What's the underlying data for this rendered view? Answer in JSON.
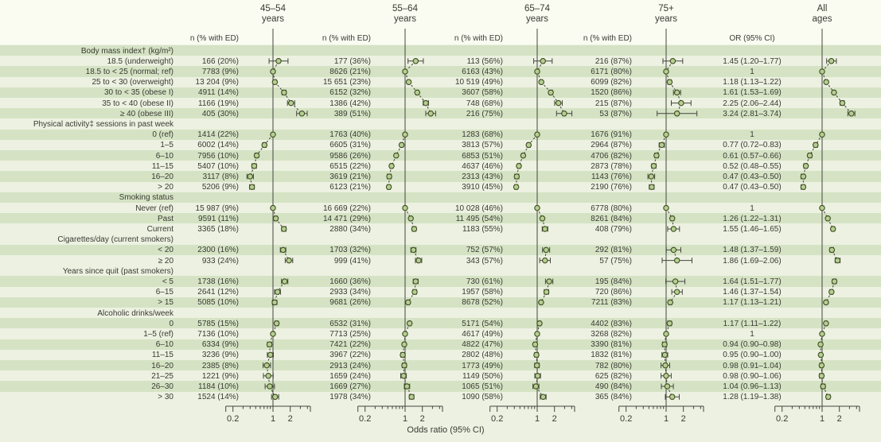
{
  "header": {
    "columns": [
      {
        "range": "45–54",
        "unit": "years",
        "n_header": "n (% with ED)"
      },
      {
        "range": "55–64",
        "unit": "years",
        "n_header": "n (% with ED)"
      },
      {
        "range": "65–74",
        "unit": "years",
        "n_header": "n (% with ED)"
      },
      {
        "range": "75+",
        "unit": "years",
        "n_header": "n (% with ED)"
      },
      {
        "range": "All",
        "unit": "ages",
        "n_header": "OR (95% CI)"
      }
    ]
  },
  "axis": {
    "xlabel": "Odds ratio (95% CI)",
    "scale": "log",
    "range": [
      0.15,
      4.5
    ],
    "major_ticks": [
      0.2,
      1,
      2
    ],
    "tick_labels": [
      "0.2",
      "1",
      "2"
    ],
    "minor_ticks": [
      0.3,
      0.4,
      0.5,
      0.6,
      0.7,
      0.8,
      0.9,
      3,
      4
    ]
  },
  "chart_data": {
    "type": "forest",
    "panel_order": [
      "45–54 years",
      "55–64 years",
      "65–74 years",
      "75+ years",
      "All ages"
    ],
    "striped_rows": [
      0,
      2,
      4,
      6,
      8,
      10,
      12,
      14,
      16,
      19,
      22,
      24,
      26,
      28,
      30,
      32
    ],
    "groups": [
      {
        "header": "Body mass index† (kg/m²)",
        "rows": [
          {
            "label": "18.5 (underweight)",
            "n": [
              "166 (20%)",
              "177 (36%)",
              "113 (56%)",
              "216 (87%)"
            ],
            "or": "1.45 (1.20–1.77)",
            "est": [
              1.25,
              1.53,
              1.26,
              1.31,
              1.45
            ],
            "ci": [
              1.2,
              1.77
            ]
          },
          {
            "label": "18.5 to < 25 (normal; ref)",
            "n": [
              "7783 (9%)",
              "8626 (21%)",
              "6163 (43%)",
              "6171 (80%)"
            ],
            "or": "1",
            "ref": true
          },
          {
            "label": "25 to < 30 (overweight)",
            "n": [
              "13 204 (9%)",
              "15 651 (23%)",
              "10 519 (49%)",
              "6099 (82%)"
            ],
            "or": "1.18 (1.13–1.22)",
            "est": [
              1.08,
              1.16,
              1.18,
              1.15,
              1.18
            ],
            "ci": [
              1.13,
              1.22
            ]
          },
          {
            "label": "30 to < 35 (obese I)",
            "n": [
              "4911 (14%)",
              "6152 (32%)",
              "3607 (58%)",
              "1520 (86%)"
            ],
            "or": "1.61 (1.53–1.69)",
            "est": [
              1.56,
              1.63,
              1.73,
              1.55,
              1.61
            ],
            "ci": [
              1.53,
              1.69
            ]
          },
          {
            "label": "35 to < 40 (obese II)",
            "n": [
              "1166 (19%)",
              "1386 (42%)",
              "748 (68%)",
              "215 (87%)"
            ],
            "or": "2.25 (2.06–2.44)",
            "est": [
              2.07,
              2.3,
              2.35,
              1.83,
              2.25
            ],
            "ci": [
              2.06,
              2.44
            ]
          },
          {
            "label": "≥ 40 (obese III)",
            "n": [
              "405 (30%)",
              "389 (51%)",
              "216 (75%)",
              "53 (87%)"
            ],
            "or": "3.24 (2.81–3.74)",
            "est": [
              3.2,
              2.8,
              2.96,
              1.55,
              3.24
            ],
            "ci": [
              2.81,
              3.74
            ]
          }
        ]
      },
      {
        "header": "Physical activity‡ sessions in past week",
        "rows": [
          {
            "label": "0 (ref)",
            "n": [
              "1414 (22%)",
              "1763 (40%)",
              "1283 (68%)",
              "1676 (91%)"
            ],
            "or": "1",
            "ref": true
          },
          {
            "label": "1–5",
            "n": [
              "6002 (14%)",
              "6605 (31%)",
              "3813 (57%)",
              "2964 (87%)"
            ],
            "or": "0.77 (0.72–0.83)",
            "est": [
              0.71,
              0.87,
              0.71,
              0.84,
              0.77
            ],
            "ci": [
              0.72,
              0.83
            ]
          },
          {
            "label": "6–10",
            "n": [
              "7956 (10%)",
              "9586 (26%)",
              "6853 (51%)",
              "4706 (82%)"
            ],
            "or": "0.61 (0.57–0.66)",
            "est": [
              0.52,
              0.7,
              0.57,
              0.68,
              0.61
            ],
            "ci": [
              0.57,
              0.66
            ]
          },
          {
            "label": "11–15",
            "n": [
              "5407 (10%)",
              "6515 (22%)",
              "4637 (46%)",
              "2873 (78%)"
            ],
            "or": "0.52 (0.48–0.55)",
            "est": [
              0.47,
              0.58,
              0.48,
              0.61,
              0.52
            ],
            "ci": [
              0.48,
              0.55
            ]
          },
          {
            "label": "16–20",
            "n": [
              "3117 (8%)",
              "3619 (21%)",
              "2313 (43%)",
              "1143 (76%)"
            ],
            "or": "0.47 (0.43–0.50)",
            "est": [
              0.4,
              0.53,
              0.44,
              0.55,
              0.47
            ],
            "ci": [
              0.43,
              0.5
            ]
          },
          {
            "label": "> 20",
            "n": [
              "5206 (9%)",
              "6123 (21%)",
              "3910 (45%)",
              "2190 (76%)"
            ],
            "or": "0.47 (0.43–0.50)",
            "est": [
              0.43,
              0.52,
              0.43,
              0.56,
              0.47
            ],
            "ci": [
              0.43,
              0.5
            ]
          }
        ]
      },
      {
        "header": "Smoking status",
        "rows": [
          {
            "label": "Never (ref)",
            "n": [
              "15 987 (9%)",
              "16 669 (22%)",
              "10 028 (46%)",
              "6778 (80%)"
            ],
            "or": "1",
            "ref": true
          },
          {
            "label": "Past",
            "n": [
              "9591 (11%)",
              "14 471 (29%)",
              "11 495 (54%)",
              "8261 (84%)"
            ],
            "or": "1.26 (1.22–1.31)",
            "est": [
              1.12,
              1.26,
              1.23,
              1.28,
              1.26
            ],
            "ci": [
              1.22,
              1.31
            ]
          },
          {
            "label": "Current",
            "n": [
              "3365 (18%)",
              "2880 (34%)",
              "1183 (55%)",
              "408 (79%)"
            ],
            "or": "1.55 (1.46–1.65)",
            "est": [
              1.55,
              1.44,
              1.37,
              1.35,
              1.55
            ],
            "ci": [
              1.46,
              1.65
            ]
          }
        ]
      },
      {
        "header": "Cigarettes/day (current smokers)",
        "rows": [
          {
            "label": "< 20",
            "n": [
              "2300 (16%)",
              "1703 (32%)",
              "752 (57%)",
              "292 (81%)"
            ],
            "or": "1.48 (1.37–1.59)",
            "est": [
              1.5,
              1.4,
              1.43,
              1.35,
              1.48
            ],
            "ci": [
              1.37,
              1.59
            ]
          },
          {
            "label": "≥ 20",
            "n": [
              "933 (24%)",
              "999 (41%)",
              "343 (57%)",
              "57 (75%)"
            ],
            "or": "1.86 (1.69–2.06)",
            "est": [
              1.9,
              1.72,
              1.37,
              1.55,
              1.86
            ],
            "ci": [
              1.69,
              2.06
            ]
          }
        ]
      },
      {
        "header": "Years since quit (past smokers)",
        "rows": [
          {
            "label": "< 5",
            "n": [
              "1738 (16%)",
              "1660 (36%)",
              "730 (61%)",
              "195 (84%)"
            ],
            "or": "1.64 (1.51–1.77)",
            "est": [
              1.6,
              1.53,
              1.62,
              1.45,
              1.64
            ],
            "ci": [
              1.51,
              1.77
            ]
          },
          {
            "label": "6–15",
            "n": [
              "2641 (12%)",
              "2933 (34%)",
              "1957 (58%)",
              "720 (86%)"
            ],
            "or": "1.46 (1.37–1.54)",
            "est": [
              1.2,
              1.47,
              1.45,
              1.55,
              1.46
            ],
            "ci": [
              1.37,
              1.54
            ]
          },
          {
            "label": "> 15",
            "n": [
              "5085 (10%)",
              "9681 (26%)",
              "8678 (52%)",
              "7211 (83%)"
            ],
            "or": "1.17 (1.13–1.21)",
            "est": [
              1.07,
              1.13,
              1.17,
              1.18,
              1.17
            ],
            "ci": [
              1.13,
              1.21
            ]
          }
        ]
      },
      {
        "header": "Alcoholic drinks/week",
        "rows": [
          {
            "label": "0",
            "n": [
              "5785 (15%)",
              "6532 (31%)",
              "5171 (54%)",
              "4402 (83%)"
            ],
            "or": "1.17 (1.11–1.22)",
            "est": [
              1.16,
              1.2,
              1.1,
              1.15,
              1.17
            ],
            "ci": [
              1.11,
              1.22
            ]
          },
          {
            "label": "1–5 (ref)",
            "n": [
              "7136 (10%)",
              "7713 (25%)",
              "4617 (49%)",
              "3268 (82%)"
            ],
            "or": "1",
            "ref": true
          },
          {
            "label": "6–10",
            "n": [
              "6334 (9%)",
              "7421 (22%)",
              "4822 (47%)",
              "3390 (81%)"
            ],
            "or": "0.94 (0.90–0.98)",
            "est": [
              0.87,
              0.97,
              0.92,
              0.94,
              0.94
            ],
            "ci": [
              0.9,
              0.98
            ]
          },
          {
            "label": "11–15",
            "n": [
              "3236 (9%)",
              "3967 (22%)",
              "2802 (48%)",
              "1832 (81%)"
            ],
            "or": "0.95 (0.90–1.00)",
            "est": [
              0.9,
              0.91,
              0.97,
              0.95,
              0.95
            ],
            "ci": [
              0.9,
              1.0
            ]
          },
          {
            "label": "16–20",
            "n": [
              "2385 (8%)",
              "2913 (24%)",
              "1773 (49%)",
              "782 (80%)"
            ],
            "or": "0.98 (0.91–1.04)",
            "est": [
              0.78,
              0.97,
              0.99,
              0.97,
              0.98
            ],
            "ci": [
              0.91,
              1.04
            ]
          },
          {
            "label": "21–25",
            "n": [
              "1221 (9%)",
              "1659 (24%)",
              "1149 (50%)",
              "625 (82%)"
            ],
            "or": "0.98 (0.90–1.06)",
            "est": [
              0.83,
              0.94,
              1.02,
              1.0,
              0.98
            ],
            "ci": [
              0.9,
              1.06
            ]
          },
          {
            "label": "26–30",
            "n": [
              "1184 (10%)",
              "1669 (27%)",
              "1065 (51%)",
              "490 (84%)"
            ],
            "or": "1.04 (0.96–1.13)",
            "est": [
              0.88,
              1.08,
              0.95,
              1.05,
              1.04
            ],
            "ci": [
              0.96,
              1.13
            ]
          },
          {
            "label": "> 30",
            "n": [
              "1524 (14%)",
              "1978 (34%)",
              "1090 (58%)",
              "365 (84%)"
            ],
            "or": "1.28 (1.19–1.38)",
            "est": [
              1.09,
              1.3,
              1.27,
              1.28,
              1.28
            ],
            "ci": [
              1.19,
              1.38
            ]
          }
        ]
      }
    ],
    "colors": {
      "stripe": "#d5e3c4",
      "background": "#ecf1e1",
      "header_band": "#fafcf2",
      "marker_fill": "#b5cf92",
      "marker_stroke": "#3e4b20",
      "line": "#45453f",
      "text": "#3a3a33"
    }
  }
}
